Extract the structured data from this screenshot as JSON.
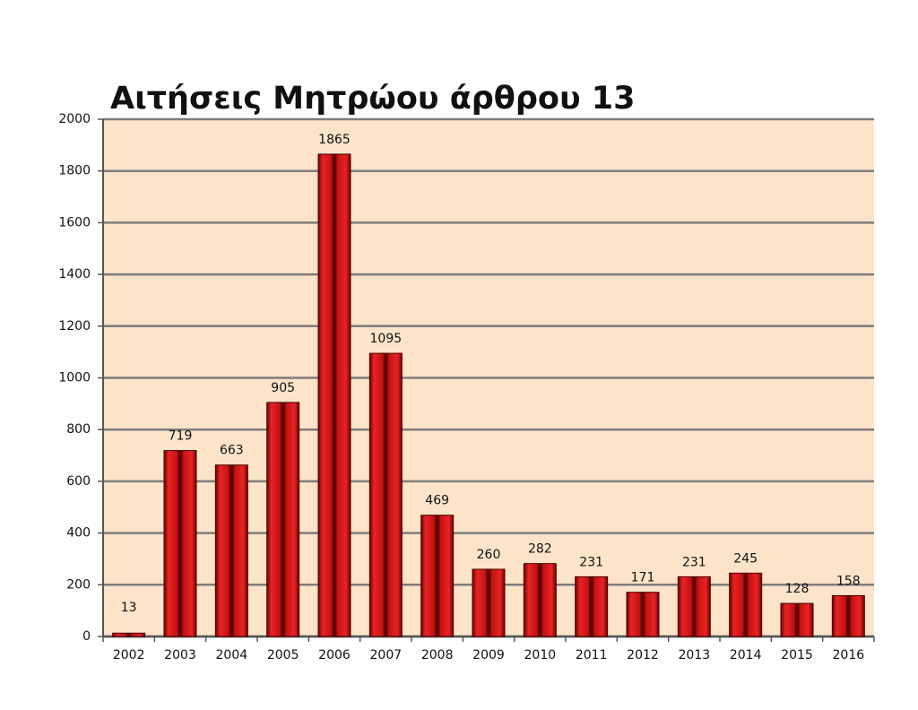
{
  "chart_data": {
    "type": "bar",
    "title": "Αιτήσεις Μητρώου άρθρου 13",
    "categories": [
      "2002",
      "2003",
      "2004",
      "2005",
      "2006",
      "2007",
      "2008",
      "2009",
      "2010",
      "2011",
      "2012",
      "2013",
      "2014",
      "2015",
      "2016"
    ],
    "values": [
      13,
      719,
      663,
      905,
      1865,
      1095,
      469,
      260,
      282,
      231,
      171,
      231,
      245,
      128,
      158
    ],
    "color": "#d01a1a",
    "ylim": [
      0,
      2000
    ],
    "yticks": [
      0,
      200,
      400,
      600,
      800,
      1000,
      1200,
      1400,
      1600,
      1800,
      2000
    ],
    "grid": true
  }
}
